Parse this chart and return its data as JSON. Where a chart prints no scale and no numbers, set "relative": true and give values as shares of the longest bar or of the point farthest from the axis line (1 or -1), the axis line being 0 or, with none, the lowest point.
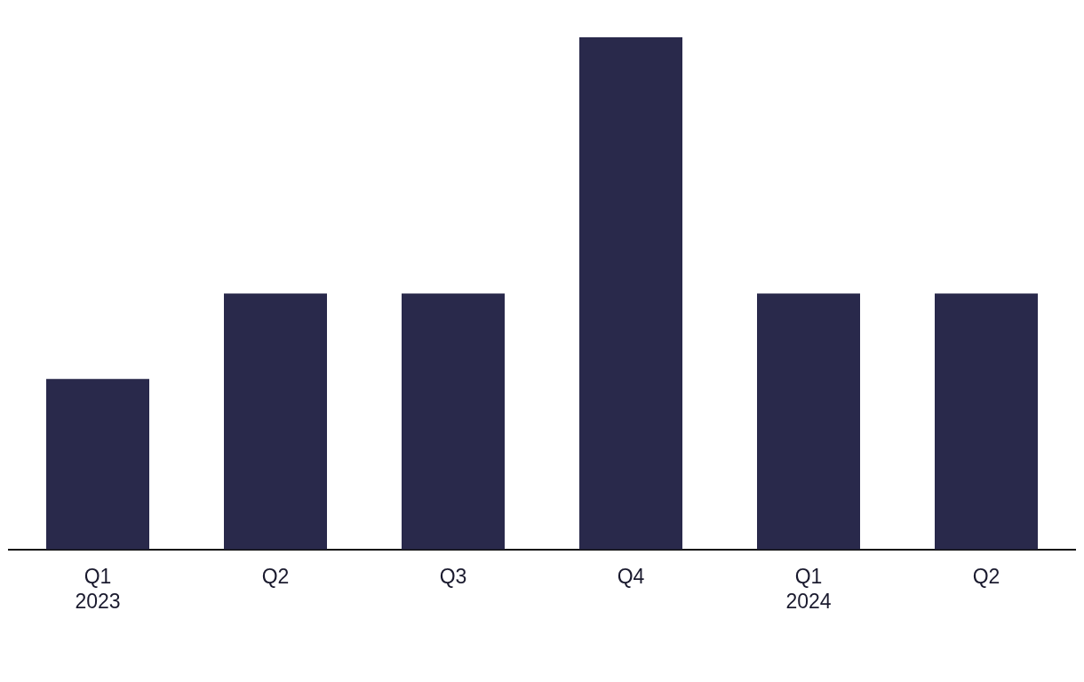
{
  "chart_data": {
    "type": "bar",
    "relative": true,
    "categories": [
      "Q1\n2023",
      "Q2",
      "Q3",
      "Q4",
      "Q1\n2024",
      "Q2"
    ],
    "series": [
      {
        "color": "#29294b",
        "values": [
          0.333,
          0.5,
          0.5,
          1,
          0.5,
          0.5
        ]
      }
    ],
    "grid": false,
    "legend": false
  }
}
